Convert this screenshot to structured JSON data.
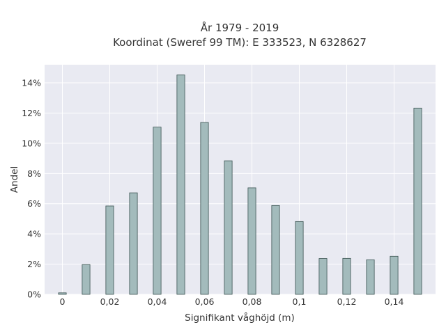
{
  "chart_data": {
    "type": "bar",
    "title": "År 1979 - 2019",
    "subtitle": "Koordinat (Sweref 99 TM): E 333523, N 6328627",
    "xlabel": "Signifikant våghöjd (m)",
    "ylabel": "Andel",
    "x": [
      0,
      0.01,
      0.02,
      0.03,
      0.04,
      0.05,
      0.06,
      0.07,
      0.08,
      0.09,
      0.1,
      0.11,
      0.12,
      0.13,
      0.14,
      0.15
    ],
    "values": [
      0.1,
      1.97,
      5.85,
      6.72,
      11.07,
      14.52,
      11.38,
      8.84,
      7.05,
      5.88,
      4.82,
      2.37,
      2.38,
      2.29,
      2.52,
      12.33
    ],
    "xlim": [
      -0.0075,
      0.1575
    ],
    "ylim": [
      0,
      15.2
    ],
    "x_ticks": [
      0,
      0.02,
      0.04,
      0.06,
      0.08,
      0.1,
      0.12,
      0.14
    ],
    "x_tick_labels": [
      "0",
      "0,02",
      "0,04",
      "0,06",
      "0,08",
      "0,1",
      "0,12",
      "0,14"
    ],
    "y_ticks": [
      0,
      2,
      4,
      6,
      8,
      10,
      12,
      14
    ],
    "y_tick_labels": [
      "0%",
      "2%",
      "4%",
      "6%",
      "8%",
      "10%",
      "12%",
      "14%"
    ],
    "grid": true,
    "colors": {
      "plot_background": "#e9eaf2",
      "grid": "#ffffff",
      "bar_fill": "#a3bbbc",
      "bar_stroke": "#3c5452"
    }
  }
}
